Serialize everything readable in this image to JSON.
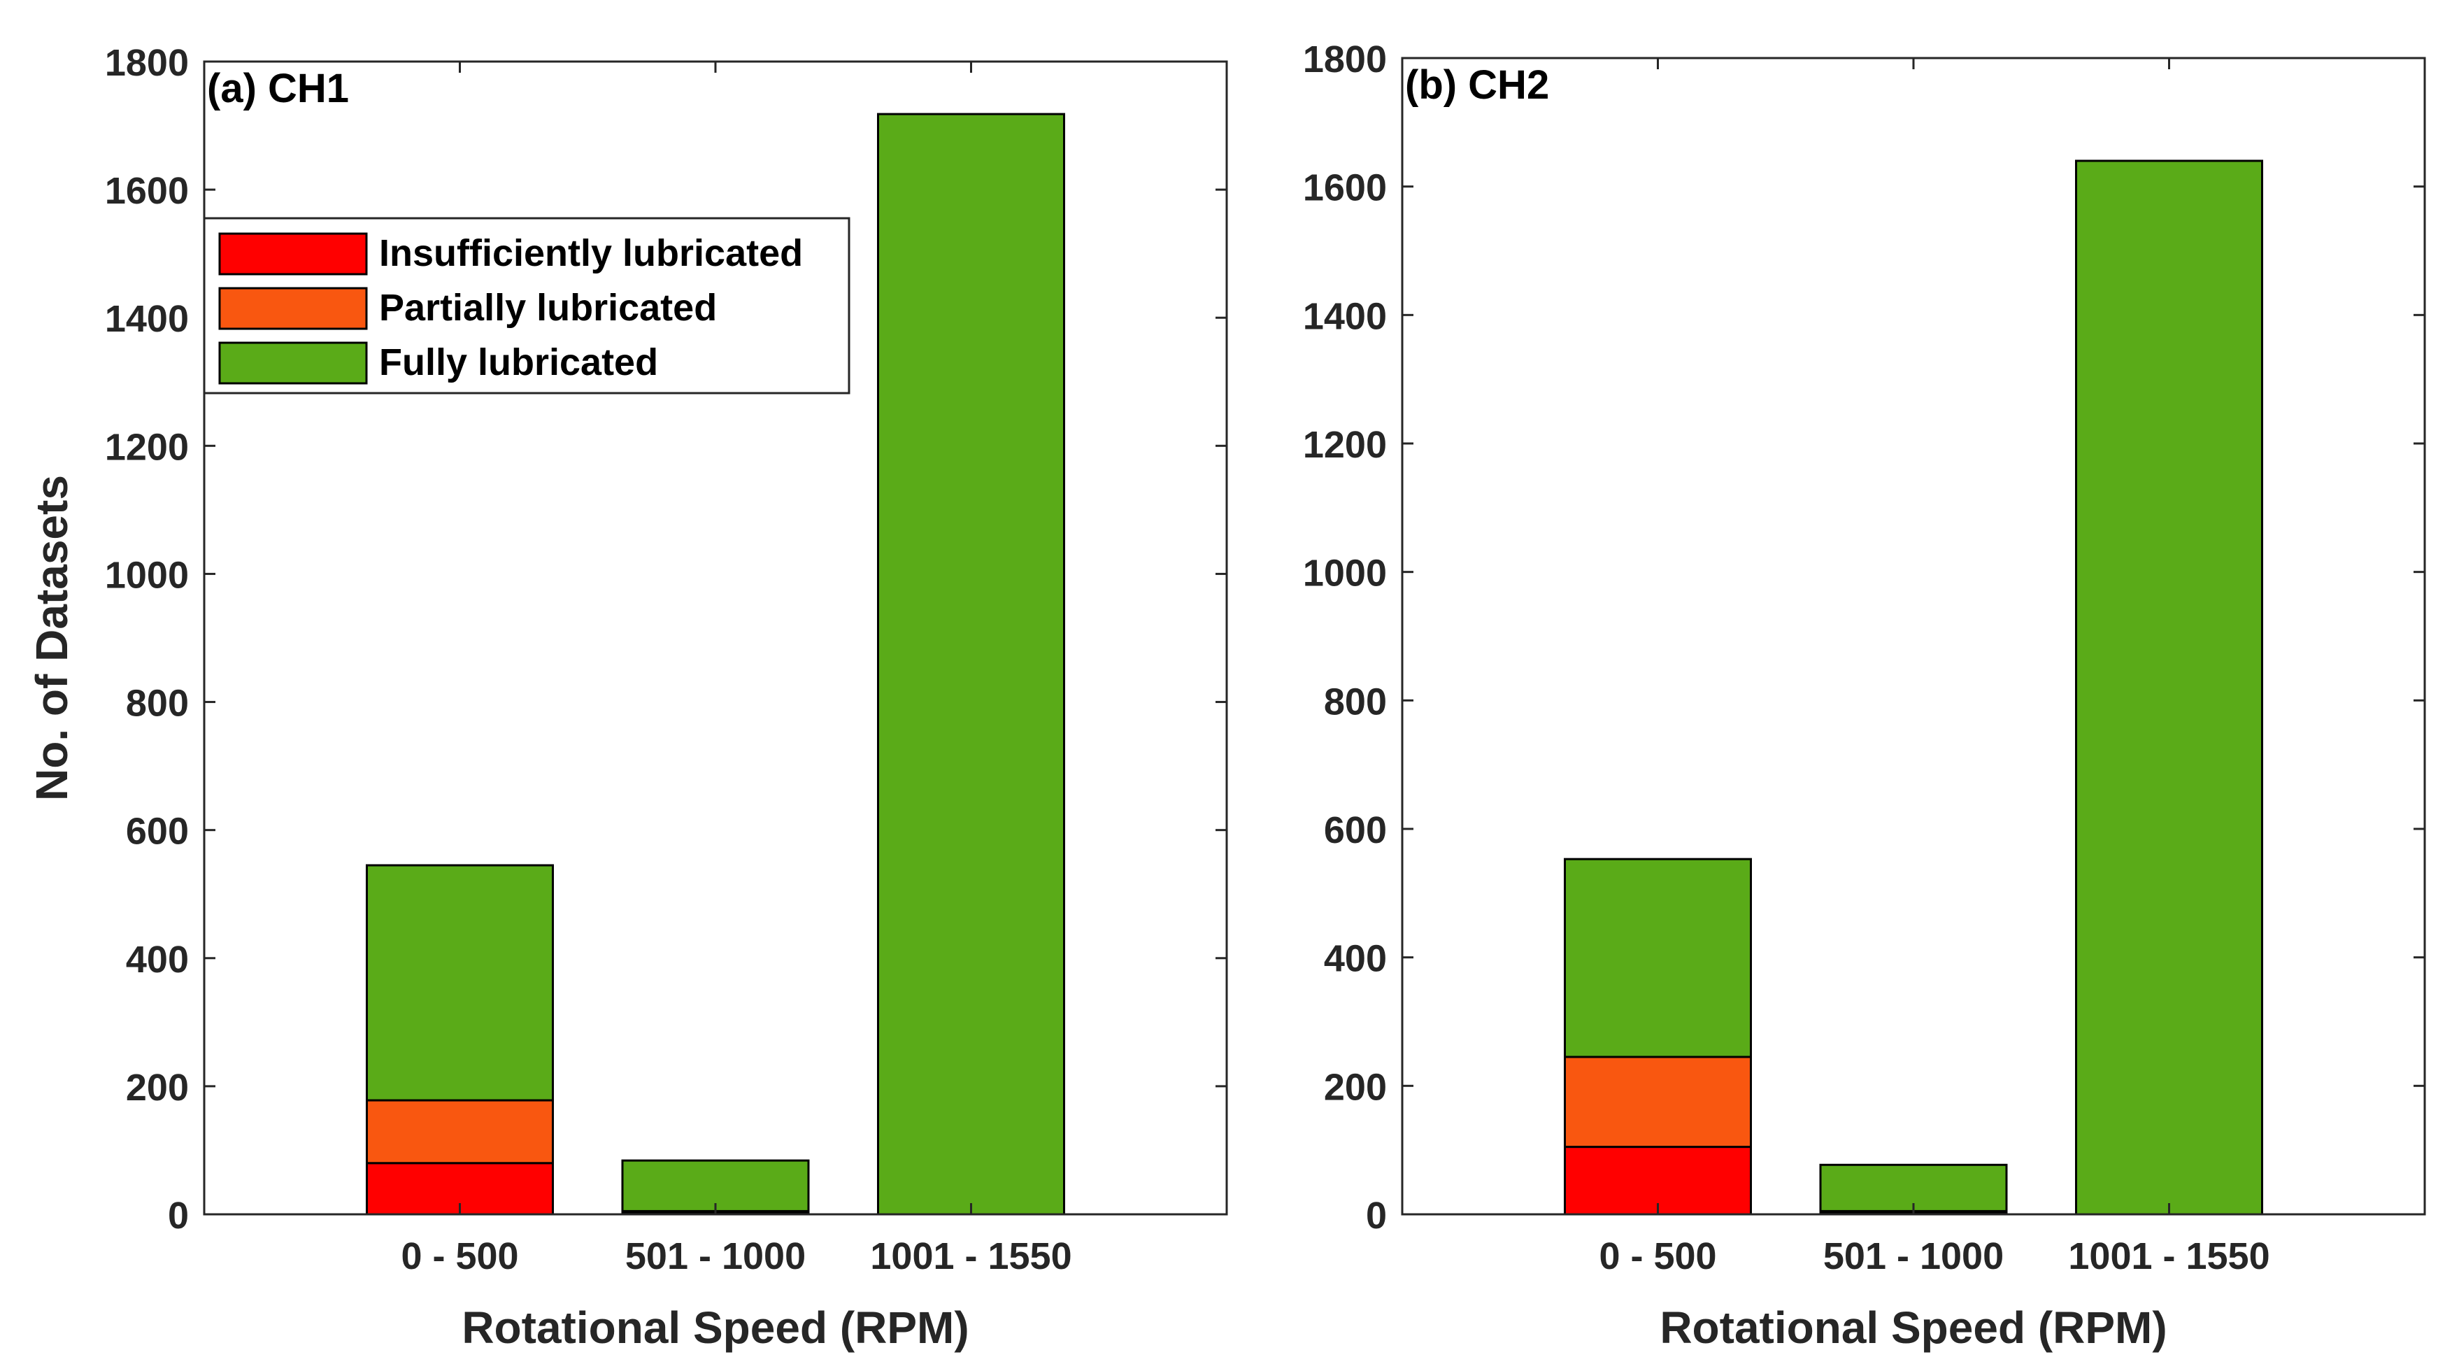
{
  "chart_data": [
    {
      "type": "bar",
      "stacked": true,
      "panel_title": "(a) CH1",
      "categories": [
        "0 - 500",
        "501 - 1000",
        "1001 - 1550"
      ],
      "series": [
        {
          "name": "Insufficiently lubricated",
          "color": "#ff0000",
          "values": [
            80,
            3,
            0
          ]
        },
        {
          "name": "Partially lubricated",
          "color": "#f95710",
          "values": [
            98,
            2,
            0
          ]
        },
        {
          "name": "Fully lubricated",
          "color": "#5aab18",
          "values": [
            367,
            79,
            1718
          ]
        }
      ],
      "xlabel": "Rotational Speed (RPM)",
      "ylabel": "No. of Datasets",
      "ylim": [
        0,
        1800
      ],
      "yticks": [
        0,
        200,
        400,
        600,
        800,
        1000,
        1200,
        1400,
        1600,
        1800
      ],
      "legend": "top-left"
    },
    {
      "type": "bar",
      "stacked": true,
      "panel_title": "(b) CH2",
      "categories": [
        "0 - 500",
        "501 - 1000",
        "1001 - 1550"
      ],
      "series": [
        {
          "name": "Insufficiently lubricated",
          "color": "#ff0000",
          "values": [
            105,
            3,
            0
          ]
        },
        {
          "name": "Partially lubricated",
          "color": "#f95710",
          "values": [
            140,
            2,
            0
          ]
        },
        {
          "name": "Fully lubricated",
          "color": "#5aab18",
          "values": [
            308,
            72,
            1640
          ]
        }
      ],
      "xlabel": "Rotational Speed (RPM)",
      "ylabel": "",
      "ylim": [
        0,
        1800
      ],
      "yticks": [
        0,
        200,
        400,
        600,
        800,
        1000,
        1200,
        1400,
        1600,
        1800
      ],
      "legend": "none"
    }
  ]
}
